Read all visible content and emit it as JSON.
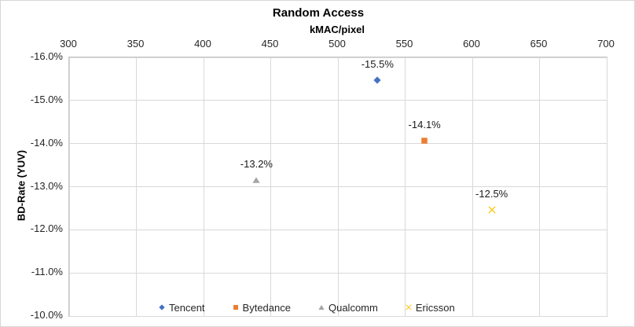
{
  "chart_data": {
    "type": "scatter",
    "title": "Random Access",
    "xlabel": "kMAC/pixel",
    "ylabel": "BD-Rate (YUV)",
    "xlim": [
      300,
      700
    ],
    "ylim_top_to_bottom": [
      -16.0,
      -10.0
    ],
    "y_axis_reversed": true,
    "grid": true,
    "legend_position": "bottom-inside-plot",
    "x_ticks": [
      {
        "value": 300,
        "label": "300"
      },
      {
        "value": 350,
        "label": "350"
      },
      {
        "value": 400,
        "label": "400"
      },
      {
        "value": 450,
        "label": "450"
      },
      {
        "value": 500,
        "label": "500"
      },
      {
        "value": 550,
        "label": "550"
      },
      {
        "value": 600,
        "label": "600"
      },
      {
        "value": 650,
        "label": "650"
      },
      {
        "value": 700,
        "label": "700"
      }
    ],
    "y_ticks": [
      {
        "value": -16.0,
        "label": "-16.0%"
      },
      {
        "value": -15.0,
        "label": "-15.0%"
      },
      {
        "value": -14.0,
        "label": "-14.0%"
      },
      {
        "value": -13.0,
        "label": "-13.0%"
      },
      {
        "value": -12.0,
        "label": "-12.0%"
      },
      {
        "value": -11.0,
        "label": "-11.0%"
      },
      {
        "value": -10.0,
        "label": "-10.0%"
      }
    ],
    "series": [
      {
        "name": "Tencent",
        "marker": "diamond",
        "color": "#4472C4",
        "points": [
          {
            "x": 530,
            "y": -15.5,
            "label": "-15.5%"
          }
        ]
      },
      {
        "name": "Bytedance",
        "marker": "square",
        "color": "#ED7D31",
        "points": [
          {
            "x": 565,
            "y": -14.1,
            "label": "-14.1%"
          }
        ]
      },
      {
        "name": "Qualcomm",
        "marker": "triangle",
        "color": "#A5A5A5",
        "points": [
          {
            "x": 440,
            "y": -13.2,
            "label": "-13.2%"
          }
        ]
      },
      {
        "name": "Ericsson",
        "marker": "x",
        "color": "#FFC000",
        "points": [
          {
            "x": 615,
            "y": -12.5,
            "label": "-12.5%"
          }
        ]
      }
    ],
    "colors": {
      "gridline": "#d9d9d9",
      "plot_border": "#c6c6c6",
      "tick_text": "#262626",
      "title_text": "#000000"
    }
  }
}
